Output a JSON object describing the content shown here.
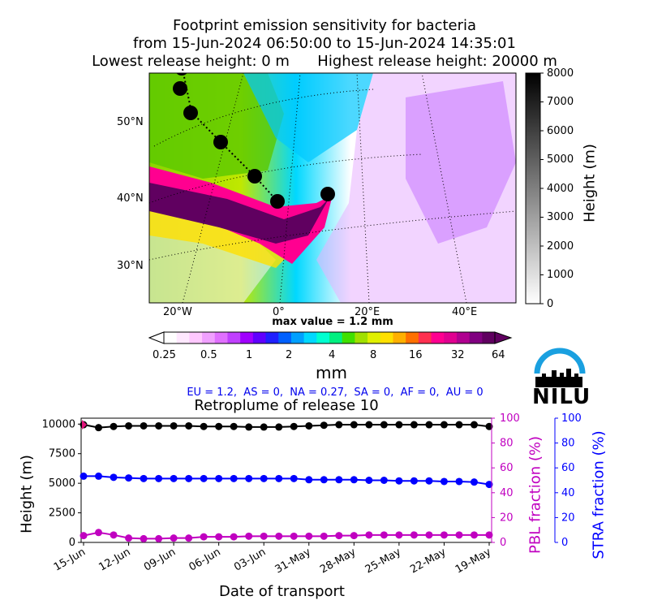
{
  "header": {
    "title_line1": "Footprint emission sensitivity for bacteria",
    "title_line2": "from 15-Jun-2024 06:50:00 to 15-Jun-2024 14:35:01",
    "title_line3": "Lowest release height: 0 m      Highest release height: 20000 m"
  },
  "map": {
    "lat_labels": [
      "50°N",
      "40°N",
      "30°N"
    ],
    "lon_labels": [
      "20°W",
      "0°",
      "20°E",
      "40°E"
    ],
    "height_colorbar": {
      "label": "Height (m)",
      "ticks": [
        "8000",
        "7000",
        "6000",
        "5000",
        "4000",
        "3000",
        "2000",
        "1000",
        "0"
      ]
    },
    "max_value_text": "max value = 1.2 mm",
    "mm_colorbar": {
      "unit": "mm",
      "ticks": [
        "0.25",
        "0.5",
        "1",
        "2",
        "4",
        "8",
        "16",
        "32",
        "64"
      ]
    }
  },
  "logo": {
    "text": "NILU"
  },
  "regions_text": "EU = 1.2,  AS = 0,  NA = 0.27,  SA = 0,  AF = 0,  AU = 0",
  "chart_data": {
    "type": "line",
    "title": "Retroplume of release 10",
    "xlabel": "Date of transport",
    "x_ticks": [
      "15-Jun",
      "12-Jun",
      "09-Jun",
      "06-Jun",
      "03-Jun",
      "31-May",
      "28-May",
      "25-May",
      "22-May",
      "19-May"
    ],
    "x_days_back": [
      0,
      1,
      2,
      3,
      4,
      5,
      6,
      7,
      8,
      9,
      10,
      11,
      12,
      13,
      14,
      15,
      16,
      17,
      18,
      19,
      20,
      21,
      22,
      23,
      24,
      25,
      26,
      27
    ],
    "y_left": {
      "label": "Height (m)",
      "ticks": [
        "0",
        "2500",
        "5000",
        "7500",
        "10000"
      ],
      "ylim": [
        0,
        10500
      ]
    },
    "y_right1": {
      "label": "PBL fraction (%)",
      "ticks": [
        "0",
        "20",
        "40",
        "60",
        "80",
        "100"
      ],
      "ylim": [
        0,
        100
      ],
      "color": "#c000c0"
    },
    "y_right2": {
      "label": "STRA fraction (%)",
      "ticks": [
        "0",
        "20",
        "40",
        "60",
        "80",
        "100"
      ],
      "ylim": [
        0,
        100
      ],
      "color": "#0000ff"
    },
    "series": [
      {
        "axis": "left",
        "color": "#000000",
        "values": [
          9950,
          9700,
          9800,
          9850,
          9850,
          9850,
          9850,
          9850,
          9800,
          9800,
          9800,
          9750,
          9750,
          9750,
          9800,
          9850,
          9900,
          9950,
          9950,
          9950,
          9950,
          9950,
          9950,
          9950,
          9950,
          9950,
          9950,
          9800
        ]
      },
      {
        "axis": "right1",
        "color": "#c000c0",
        "values": [
          5.5,
          8.0,
          6.0,
          3.5,
          3.0,
          3.0,
          3.5,
          3.5,
          4.5,
          4.5,
          4.5,
          5.0,
          5.0,
          5.0,
          5.0,
          5.0,
          5.0,
          5.5,
          5.5,
          6.0,
          6.0,
          6.0,
          6.0,
          6.0,
          6.0,
          6.0,
          6.0,
          6.0
        ]
      },
      {
        "axis": "left",
        "color": "#0000ff",
        "values": [
          5600,
          5600,
          5500,
          5450,
          5400,
          5400,
          5400,
          5400,
          5400,
          5400,
          5400,
          5400,
          5400,
          5400,
          5400,
          5300,
          5300,
          5300,
          5300,
          5250,
          5250,
          5200,
          5200,
          5200,
          5150,
          5150,
          5100,
          4900
        ]
      }
    ]
  }
}
